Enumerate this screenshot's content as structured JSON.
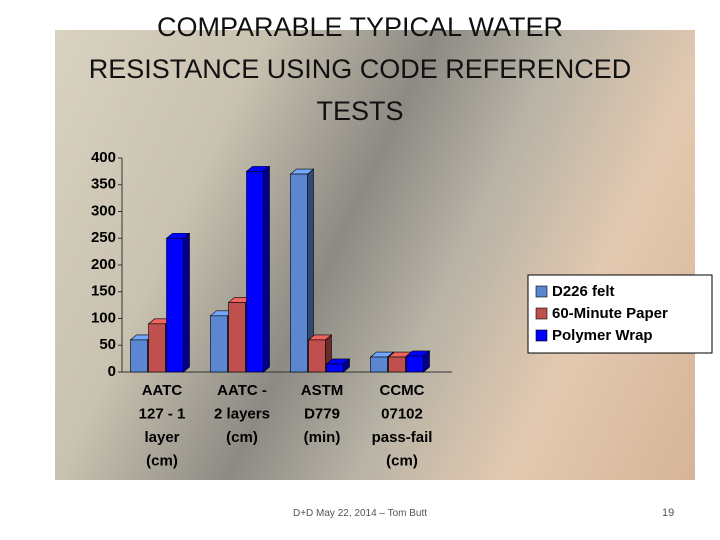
{
  "chart_data": {
    "type": "bar3d",
    "title": "COMPARABLE TYPICAL WATER RESISTANCE USING CODE REFERENCED TESTS",
    "categories": [
      [
        "AATC",
        "127 - 1",
        "layer",
        "(cm)"
      ],
      [
        "AATC -",
        "2 layers",
        "(cm)"
      ],
      [
        "ASTM",
        "D779",
        "(min)"
      ],
      [
        "CCMC",
        "07102",
        "pass-fail",
        "(cm)"
      ]
    ],
    "series": [
      {
        "name": "D226 felt",
        "color": "#5b86d1",
        "values": [
          60,
          105,
          370,
          28
        ]
      },
      {
        "name": "60-Minute Paper",
        "color": "#c0504d",
        "values": [
          90,
          130,
          60,
          28
        ]
      },
      {
        "name": "Polymer Wrap",
        "color": "#0000ff",
        "values": [
          250,
          375,
          15,
          30
        ]
      }
    ],
    "ylim": [
      0,
      400
    ],
    "yticks": [
      0,
      50,
      100,
      150,
      200,
      250,
      300,
      350,
      400
    ],
    "grid": false,
    "legend": "right"
  },
  "slide": {
    "footer": "D+D May 22, 2014 – Tom Butt",
    "page_number": "19"
  }
}
